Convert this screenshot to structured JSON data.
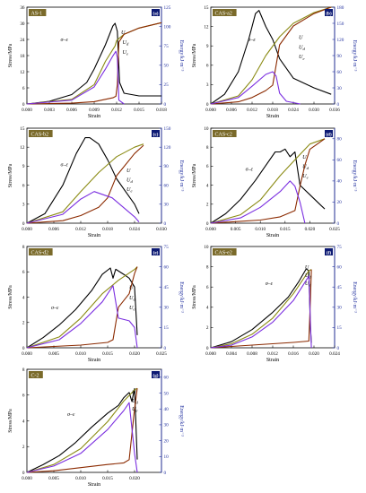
{
  "colors": {
    "stress": "#000000",
    "U": "#8B8B14",
    "Ud": "#8B2A00",
    "Ue": "#7B2FE0",
    "energy_axis": "#1f2e9e",
    "badge_bg": "#0d1a73",
    "label_bg": "#7a6a2a"
  },
  "chart_data": [
    {
      "type": "line",
      "panel_label": "AS-1",
      "panel_letter": "(a)",
      "xlabel": "Strain",
      "ylabel": "Stress/MPa",
      "y2label": "Energy/kJ·m⁻³",
      "xlim": [
        0,
        0.018
      ],
      "ylim": [
        0,
        36
      ],
      "y2lim": [
        0,
        125
      ],
      "xticks": [
        "0.000",
        "0.003",
        "0.006",
        "0.009",
        "0.012",
        "0.015",
        "0.018"
      ],
      "yticks": [
        "0",
        "6",
        "12",
        "18",
        "24",
        "30",
        "36"
      ],
      "y2ticks": [
        "0",
        "25",
        "50",
        "75",
        "100",
        "125"
      ],
      "labels": {
        "stress": "σ–ε",
        "U": "U",
        "Ud": "U",
        "Ud_sub": "d",
        "Ue": "U",
        "Ue_sub": "e"
      },
      "series": [
        {
          "key": "stress",
          "axis": "left",
          "x": [
            0,
            0.003,
            0.006,
            0.008,
            0.009,
            0.0105,
            0.0115,
            0.0118,
            0.0121,
            0.0124,
            0.013,
            0.015,
            0.018
          ],
          "y": [
            0,
            1,
            3.5,
            8,
            13,
            22,
            29,
            30,
            27,
            8,
            4,
            3,
            3
          ]
        },
        {
          "key": "U",
          "axis": "right",
          "x": [
            0,
            0.006,
            0.009,
            0.0105,
            0.0118,
            0.012,
            0.013,
            0.015,
            0.018
          ],
          "y": [
            0,
            6,
            25,
            55,
            75,
            82,
            90,
            98,
            105
          ]
        },
        {
          "key": "Ud",
          "axis": "right",
          "x": [
            0,
            0.006,
            0.009,
            0.0105,
            0.0115,
            0.0119,
            0.0121,
            0.0123,
            0.013,
            0.015,
            0.018
          ],
          "y": [
            0,
            1,
            3,
            6,
            8,
            10,
            25,
            80,
            90,
            98,
            105
          ]
        },
        {
          "key": "Ue",
          "axis": "right",
          "x": [
            0,
            0.006,
            0.009,
            0.0105,
            0.0115,
            0.0119,
            0.0121,
            0.0123,
            0.013
          ],
          "y": [
            0,
            5,
            22,
            45,
            62,
            68,
            60,
            5,
            0
          ]
        }
      ]
    },
    {
      "type": "line",
      "panel_label": "CAS-a2",
      "panel_letter": "(b)",
      "xlabel": "Strain",
      "ylabel": "Stress/MPa",
      "y2label": "Energy/kJ·m⁻³",
      "xlim": [
        0,
        0.036
      ],
      "ylim": [
        0,
        15
      ],
      "y2lim": [
        0,
        180
      ],
      "xticks": [
        "0.000",
        "0.006",
        "0.012",
        "0.018",
        "0.024",
        "0.030",
        "0.036"
      ],
      "yticks": [
        "0",
        "3",
        "6",
        "9",
        "12",
        "15"
      ],
      "y2ticks": [
        "0",
        "30",
        "60",
        "90",
        "120",
        "150",
        "180"
      ],
      "labels": {
        "stress": "σ–ε",
        "U": "U",
        "Ud": "U",
        "Ud_sub": "d",
        "Ue": "U",
        "Ue_sub": "e"
      },
      "series": [
        {
          "key": "stress",
          "axis": "left",
          "x": [
            0,
            0.004,
            0.008,
            0.011,
            0.013,
            0.014,
            0.016,
            0.018,
            0.02,
            0.024,
            0.03,
            0.035
          ],
          "y": [
            0,
            1.5,
            5,
            10,
            14,
            14.5,
            12,
            10,
            7,
            4,
            2.5,
            1.5
          ]
        },
        {
          "key": "U",
          "axis": "right",
          "x": [
            0,
            0.008,
            0.012,
            0.016,
            0.02,
            0.024,
            0.03,
            0.035
          ],
          "y": [
            0,
            15,
            45,
            90,
            125,
            150,
            170,
            180
          ]
        },
        {
          "key": "Ud",
          "axis": "right",
          "x": [
            0,
            0.008,
            0.012,
            0.016,
            0.018,
            0.02,
            0.024,
            0.03,
            0.035
          ],
          "y": [
            0,
            4,
            12,
            25,
            35,
            110,
            145,
            168,
            180
          ]
        },
        {
          "key": "Ue",
          "axis": "right",
          "x": [
            0,
            0.008,
            0.012,
            0.016,
            0.018,
            0.019,
            0.02,
            0.022,
            0.026
          ],
          "y": [
            0,
            12,
            33,
            55,
            60,
            52,
            20,
            5,
            0
          ]
        }
      ]
    },
    {
      "type": "line",
      "panel_label": "CAS-b2",
      "panel_letter": "(c)",
      "xlabel": "Strain",
      "ylabel": "Stress/MPa",
      "y2label": "Energy/kJ·m⁻³",
      "xlim": [
        0,
        0.03
      ],
      "ylim": [
        0,
        15
      ],
      "y2lim": [
        0,
        150
      ],
      "xticks": [
        "0.000",
        "0.006",
        "0.012",
        "0.018",
        "0.024",
        "0.030"
      ],
      "yticks": [
        "0",
        "3",
        "6",
        "9",
        "12",
        "15"
      ],
      "y2ticks": [
        "0",
        "30",
        "60",
        "90",
        "120",
        "150"
      ],
      "labels": {
        "stress": "σ–ε",
        "U": "U",
        "Ud": "U",
        "Ud_sub": "d",
        "Ue": "U",
        "Ue_sub": "e"
      },
      "series": [
        {
          "key": "stress",
          "axis": "left",
          "x": [
            0,
            0.004,
            0.008,
            0.011,
            0.013,
            0.014,
            0.016,
            0.018,
            0.02,
            0.022,
            0.024,
            0.025
          ],
          "y": [
            0,
            1.5,
            6,
            11,
            13.5,
            13.5,
            12.5,
            10,
            7,
            5,
            3,
            1.5
          ]
        },
        {
          "key": "U",
          "axis": "right",
          "x": [
            0,
            0.008,
            0.012,
            0.016,
            0.02,
            0.024,
            0.026
          ],
          "y": [
            0,
            18,
            50,
            80,
            105,
            120,
            125
          ]
        },
        {
          "key": "Ud",
          "axis": "right",
          "x": [
            0,
            0.008,
            0.012,
            0.016,
            0.018,
            0.02,
            0.024,
            0.026
          ],
          "y": [
            0,
            4,
            12,
            25,
            40,
            75,
            110,
            123
          ]
        },
        {
          "key": "Ue",
          "axis": "right",
          "x": [
            0,
            0.008,
            0.012,
            0.015,
            0.017,
            0.019,
            0.021,
            0.024,
            0.025
          ],
          "y": [
            0,
            14,
            38,
            50,
            45,
            40,
            28,
            10,
            2
          ]
        }
      ]
    },
    {
      "type": "line",
      "panel_label": "CAS-c2",
      "panel_letter": "(d)",
      "xlabel": "Strain",
      "ylabel": "Stress/MPa",
      "y2label": "Energy/kJ·m⁻³",
      "xlim": [
        0,
        0.025
      ],
      "ylim": [
        0,
        10
      ],
      "y2lim": [
        0,
        90
      ],
      "xticks": [
        "0.000",
        "0.005",
        "0.010",
        "0.015",
        "0.020",
        "0.025"
      ],
      "yticks": [
        "0",
        "2",
        "4",
        "6",
        "8",
        "10"
      ],
      "y2ticks": [
        "0",
        "20",
        "40",
        "60",
        "80"
      ],
      "labels": {
        "stress": "σ–ε",
        "U": "U",
        "Ud": "U",
        "Ud_sub": "d",
        "Ue": "U",
        "Ue_sub": "e"
      },
      "series": [
        {
          "key": "stress",
          "axis": "left",
          "x": [
            0,
            0.003,
            0.006,
            0.009,
            0.011,
            0.013,
            0.014,
            0.015,
            0.016,
            0.017,
            0.018,
            0.02,
            0.022,
            0.023
          ],
          "y": [
            0,
            1,
            2.5,
            4.5,
            6,
            7.5,
            7.5,
            7.8,
            7,
            7.5,
            4,
            3,
            2,
            1.5
          ]
        },
        {
          "key": "U",
          "axis": "right",
          "x": [
            0,
            0.006,
            0.01,
            0.014,
            0.017,
            0.02,
            0.023
          ],
          "y": [
            0,
            8,
            22,
            45,
            60,
            75,
            80
          ]
        },
        {
          "key": "Ud",
          "axis": "right",
          "x": [
            0,
            0.01,
            0.014,
            0.016,
            0.017,
            0.018,
            0.019,
            0.02,
            0.023
          ],
          "y": [
            0,
            3,
            6,
            10,
            12,
            35,
            55,
            70,
            80
          ]
        },
        {
          "key": "Ue",
          "axis": "right",
          "x": [
            0,
            0.006,
            0.01,
            0.014,
            0.016,
            0.017,
            0.018,
            0.019
          ],
          "y": [
            0,
            5,
            15,
            30,
            40,
            35,
            20,
            0
          ]
        }
      ]
    },
    {
      "type": "line",
      "panel_label": "CAS-d2",
      "panel_letter": "(e)",
      "xlabel": "Strain",
      "ylabel": "Stress/MPa",
      "y2label": "Energy/kJ·m⁻³",
      "xlim": [
        0,
        0.025
      ],
      "ylim": [
        0,
        8
      ],
      "y2lim": [
        0,
        75
      ],
      "xticks": [
        "0.000",
        "0.005",
        "0.010",
        "0.015",
        "0.020",
        "0.025"
      ],
      "yticks": [
        "0",
        "2",
        "4",
        "6",
        "8"
      ],
      "y2ticks": [
        "0",
        "15",
        "30",
        "45",
        "60",
        "75"
      ],
      "labels": {
        "stress": "σ–ε",
        "U": "U",
        "Ud": "U",
        "Ud_sub": "d",
        "Ue": "U",
        "Ue_sub": "e"
      },
      "series": [
        {
          "key": "stress",
          "axis": "left",
          "x": [
            0,
            0.003,
            0.006,
            0.009,
            0.012,
            0.014,
            0.0155,
            0.016,
            0.0165,
            0.018,
            0.019,
            0.02,
            0.0205
          ],
          "y": [
            0,
            0.8,
            1.8,
            3,
            4.5,
            5.8,
            6.3,
            5.5,
            6.2,
            5.8,
            5.5,
            4.8,
            1
          ]
        },
        {
          "key": "U",
          "axis": "right",
          "x": [
            0,
            0.006,
            0.01,
            0.014,
            0.017,
            0.02,
            0.0205
          ],
          "y": [
            0,
            8,
            22,
            40,
            50,
            58,
            60
          ]
        },
        {
          "key": "Ud",
          "axis": "right",
          "x": [
            0,
            0.01,
            0.015,
            0.016,
            0.017,
            0.019,
            0.02,
            0.0205
          ],
          "y": [
            0,
            2,
            4,
            6,
            30,
            40,
            55,
            60
          ]
        },
        {
          "key": "Ue",
          "axis": "right",
          "x": [
            0,
            0.006,
            0.01,
            0.014,
            0.016,
            0.017,
            0.019,
            0.02,
            0.0205
          ],
          "y": [
            0,
            6,
            18,
            34,
            46,
            22,
            20,
            15,
            0
          ]
        }
      ]
    },
    {
      "type": "line",
      "panel_label": "CAS-e2",
      "panel_letter": "(f)",
      "xlabel": "Strain",
      "ylabel": "Stress/MPa",
      "y2label": "Energy/kJ·m⁻³",
      "xlim": [
        0,
        0.024
      ],
      "ylim": [
        0,
        10
      ],
      "y2lim": [
        0,
        75
      ],
      "xticks": [
        "0.000",
        "0.004",
        "0.008",
        "0.012",
        "0.016",
        "0.020",
        "0.024"
      ],
      "yticks": [
        "0",
        "2",
        "4",
        "6",
        "8",
        "10"
      ],
      "y2ticks": [
        "0",
        "15",
        "30",
        "45",
        "60",
        "75"
      ],
      "labels": {
        "stress": "σ–ε",
        "U": "U",
        "Ud": "U",
        "Ud_sub": "d",
        "Ue": "U",
        "Ue_sub": "e"
      },
      "series": [
        {
          "key": "stress",
          "axis": "left",
          "x": [
            0,
            0.004,
            0.008,
            0.012,
            0.015,
            0.017,
            0.0185,
            0.019,
            0.0193,
            0.0195
          ],
          "y": [
            0,
            0.6,
            1.8,
            3.5,
            5,
            6.5,
            7.8,
            7.6,
            2,
            0.5
          ]
        },
        {
          "key": "U",
          "axis": "right",
          "x": [
            0,
            0.004,
            0.008,
            0.012,
            0.016,
            0.019,
            0.0195
          ],
          "y": [
            0,
            3,
            10,
            22,
            40,
            57,
            58
          ]
        },
        {
          "key": "Ud",
          "axis": "right",
          "x": [
            0,
            0.004,
            0.008,
            0.012,
            0.016,
            0.019,
            0.0193,
            0.0195
          ],
          "y": [
            0,
            1,
            2,
            3,
            4,
            5,
            35,
            58
          ]
        },
        {
          "key": "Ue",
          "axis": "right",
          "x": [
            0,
            0.004,
            0.008,
            0.012,
            0.016,
            0.019,
            0.0193,
            0.0195
          ],
          "y": [
            0,
            2,
            8,
            19,
            35,
            53,
            20,
            0
          ]
        }
      ]
    },
    {
      "type": "line",
      "panel_label": "C-2",
      "panel_letter": "(g)",
      "xlabel": "Strain",
      "ylabel": "Stress/MPa",
      "y2label": "Energy/kJ·m⁻³",
      "xlim": [
        0,
        0.025
      ],
      "ylim": [
        0,
        8
      ],
      "y2lim": [
        0,
        65
      ],
      "xticks": [
        "0.000",
        "0.005",
        "0.010",
        "0.015",
        "0.020"
      ],
      "yticks": [
        "0",
        "2",
        "4",
        "6",
        "8"
      ],
      "y2ticks": [
        "0",
        "10",
        "20",
        "30",
        "40",
        "50",
        "60"
      ],
      "labels": {
        "stress": "σ–ε",
        "U": "U",
        "Ud": "U",
        "Ud_sub": "d",
        "Ue": "U",
        "Ue_sub": "e"
      },
      "series": [
        {
          "key": "stress",
          "axis": "left",
          "x": [
            0,
            0.003,
            0.006,
            0.009,
            0.012,
            0.015,
            0.017,
            0.018,
            0.019,
            0.0195,
            0.02,
            0.0205
          ],
          "y": [
            0,
            0.6,
            1.3,
            2.3,
            3.5,
            4.6,
            5.2,
            5.8,
            6.2,
            5.5,
            6.5,
            1
          ]
        },
        {
          "key": "U",
          "axis": "right",
          "x": [
            0,
            0.005,
            0.01,
            0.015,
            0.018,
            0.02,
            0.0205
          ],
          "y": [
            0,
            5,
            15,
            32,
            45,
            52,
            53
          ]
        },
        {
          "key": "Ud",
          "axis": "right",
          "x": [
            0,
            0.005,
            0.01,
            0.015,
            0.018,
            0.019,
            0.02,
            0.0205
          ],
          "y": [
            0,
            1,
            3,
            5,
            6,
            8,
            40,
            53
          ]
        },
        {
          "key": "Ue",
          "axis": "right",
          "x": [
            0,
            0.005,
            0.01,
            0.015,
            0.018,
            0.019,
            0.02,
            0.0205
          ],
          "y": [
            0,
            4,
            12,
            27,
            39,
            44,
            12,
            0
          ]
        }
      ]
    }
  ]
}
